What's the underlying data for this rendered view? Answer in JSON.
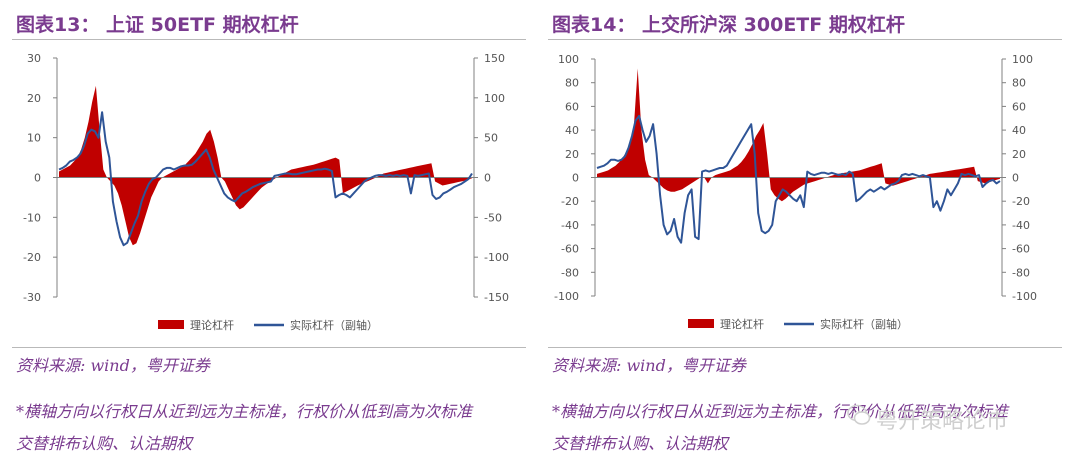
{
  "chart_data": [
    {
      "type": "area",
      "title": "图表13： 上证 50ETF 期权杠杆",
      "y_left": {
        "min": -30,
        "max": 30,
        "ticks": [
          30,
          20,
          10,
          0,
          -10,
          -20,
          -30
        ]
      },
      "y_right": {
        "min": -150,
        "max": 150,
        "ticks": [
          150,
          100,
          50,
          0,
          -50,
          -100,
          -150
        ]
      },
      "legend": {
        "placement": "bottom",
        "entries": [
          "理论杠杆",
          "实际杠杆（副轴）"
        ]
      },
      "colors": {
        "theoretical": "#c00000",
        "actual": "#2f5597"
      },
      "series": [
        {
          "name": "理论杠杆",
          "axis": "left",
          "values": [
            1.5,
            2,
            2.5,
            3,
            4,
            5,
            7,
            10,
            14,
            19,
            23,
            12,
            2,
            0,
            -1,
            -2,
            -4,
            -7,
            -11,
            -15,
            -17,
            -16.5,
            -14,
            -11,
            -8,
            -5,
            -3,
            -1,
            0,
            0.5,
            1,
            1.5,
            2,
            2.5,
            3,
            4,
            5,
            6,
            7.5,
            9,
            11,
            12,
            9,
            5,
            0,
            -1,
            -3,
            -5,
            -7,
            -8,
            -7.5,
            -6.5,
            -5.5,
            -4.5,
            -3.5,
            -2.5,
            -1.8,
            -1.2,
            -0.6,
            0,
            0.5,
            1,
            1.5,
            2,
            2.2,
            2.4,
            2.6,
            2.8,
            3,
            3.2,
            3.5,
            3.8,
            4.1,
            4.4,
            4.7,
            5,
            4.5,
            -4,
            -3.5,
            -3,
            -2.5,
            -2,
            -1.6,
            -1.2,
            -0.8,
            -0.4,
            0,
            0.5,
            1,
            1.2,
            1.4,
            1.6,
            1.8,
            2,
            2.2,
            2.4,
            2.6,
            2.8,
            3,
            3.2,
            3.4,
            3.6,
            -1,
            -1.5,
            -2,
            -1.8,
            -1.6,
            -1.4,
            -1.2,
            -1,
            -0.8,
            -0.5,
            -0.2
          ]
        },
        {
          "name": "实际杠杆（副轴）",
          "axis": "right",
          "values": [
            10,
            12,
            15,
            20,
            22,
            25,
            30,
            40,
            55,
            60,
            58,
            50,
            82,
            45,
            25,
            -30,
            -55,
            -75,
            -85,
            -82,
            -70,
            -58,
            -48,
            -30,
            -18,
            -8,
            -2,
            0,
            5,
            10,
            12,
            12,
            10,
            12,
            14,
            15,
            15,
            16,
            20,
            25,
            30,
            35,
            25,
            10,
            0,
            -10,
            -20,
            -25,
            -28,
            -30,
            -25,
            -20,
            -18,
            -15,
            -12,
            -10,
            -8,
            -7,
            -6,
            -5,
            2,
            3,
            4,
            5,
            5,
            4,
            4,
            5,
            6,
            7,
            8,
            9,
            10,
            10,
            11,
            10,
            8,
            -25,
            -22,
            -20,
            -22,
            -25,
            -20,
            -15,
            -10,
            -5,
            -2,
            0,
            2,
            3,
            3,
            2,
            3,
            2,
            3,
            2,
            3,
            2,
            -20,
            3,
            2,
            3,
            4,
            5,
            -22,
            -27,
            -25,
            -20,
            -18,
            -15,
            -12,
            -10,
            -8,
            -5,
            -2,
            5
          ]
        }
      ]
    },
    {
      "type": "area",
      "title": "图表14： 上交所沪深 300ETF 期权杠杆",
      "y_left": {
        "min": -100,
        "max": 100,
        "ticks": [
          100,
          80,
          60,
          40,
          20,
          0,
          -20,
          -40,
          -60,
          -80,
          -100
        ]
      },
      "y_right": {
        "min": -100,
        "max": 100,
        "ticks": [
          100,
          80,
          60,
          40,
          20,
          0,
          -20,
          -40,
          -60,
          -80,
          -100
        ]
      },
      "legend": {
        "placement": "bottom",
        "entries": [
          "理论杠杆",
          "实际杠杆（副轴）"
        ]
      },
      "colors": {
        "theoretical": "#c00000",
        "actual": "#2f5597"
      },
      "series": [
        {
          "name": "理论杠杆",
          "axis": "left",
          "values": [
            3,
            4,
            5,
            6,
            8,
            10,
            13,
            17,
            22,
            30,
            45,
            92,
            40,
            15,
            2,
            0,
            -3,
            -6,
            -9,
            -11,
            -12,
            -12,
            -11,
            -10,
            -8,
            -6,
            -4,
            -2,
            0,
            0,
            -5,
            0,
            2,
            3,
            4,
            5,
            6,
            8,
            10,
            13,
            17,
            22,
            28,
            35,
            40,
            46,
            20,
            -10,
            -15,
            -18,
            -20,
            -18,
            -15,
            -12,
            -10,
            -8,
            -6,
            -5,
            -4,
            -3,
            -2,
            -1,
            0,
            1,
            2,
            3,
            3.5,
            4,
            4.5,
            5,
            5.5,
            6,
            7,
            8,
            9,
            10,
            11,
            12,
            -5,
            -6,
            -7,
            -6,
            -5,
            -4,
            -3,
            -2,
            -1,
            0,
            1,
            2,
            3,
            3.5,
            4,
            4.5,
            5,
            5.5,
            6,
            6.5,
            7,
            7.5,
            8,
            8.5,
            9,
            -3,
            -4,
            -5,
            -4,
            -3,
            -2,
            -1
          ]
        },
        {
          "name": "实际杠杆（副轴）",
          "axis": "right",
          "values": [
            8,
            9,
            10,
            12,
            15,
            15,
            14,
            15,
            18,
            25,
            35,
            48,
            52,
            40,
            30,
            35,
            45,
            20,
            -15,
            -40,
            -48,
            -45,
            -35,
            -50,
            -55,
            -30,
            -15,
            -10,
            -50,
            -52,
            5,
            6,
            5,
            6,
            7,
            8,
            8,
            10,
            15,
            20,
            25,
            30,
            35,
            40,
            45,
            20,
            -30,
            -45,
            -47,
            -45,
            -40,
            -20,
            -15,
            -10,
            -12,
            -15,
            -18,
            -20,
            -15,
            -25,
            5,
            3,
            2,
            3,
            4,
            4,
            3,
            4,
            3,
            2,
            3,
            2,
            5,
            3,
            -20,
            -18,
            -15,
            -12,
            -10,
            -12,
            -10,
            -8,
            -10,
            -8,
            -6,
            -5,
            -3,
            2,
            3,
            2,
            3,
            2,
            1,
            2,
            1,
            0,
            -25,
            -20,
            -28,
            -20,
            -10,
            -15,
            -10,
            -5,
            3,
            2,
            3,
            2,
            1,
            2,
            -8,
            -5,
            -3,
            -2,
            -5,
            -3
          ]
        }
      ]
    }
  ],
  "panels": [
    {
      "source": "资料来源: wind，粤开证券",
      "note1": "*横轴方向以行权日从近到远为主标准，行权价从低到高为次标准",
      "note2": "交替排布认购、认沽期权"
    },
    {
      "source": "资料来源: wind，粤开证券",
      "note1": "*横轴方向以行权日从近到远为主标准，行权价从低到高为次标准",
      "note2": "交替排布认购、认沽期权"
    }
  ],
  "watermark": {
    "text": "粤开策略论市",
    "icon": "wechat-icon"
  }
}
